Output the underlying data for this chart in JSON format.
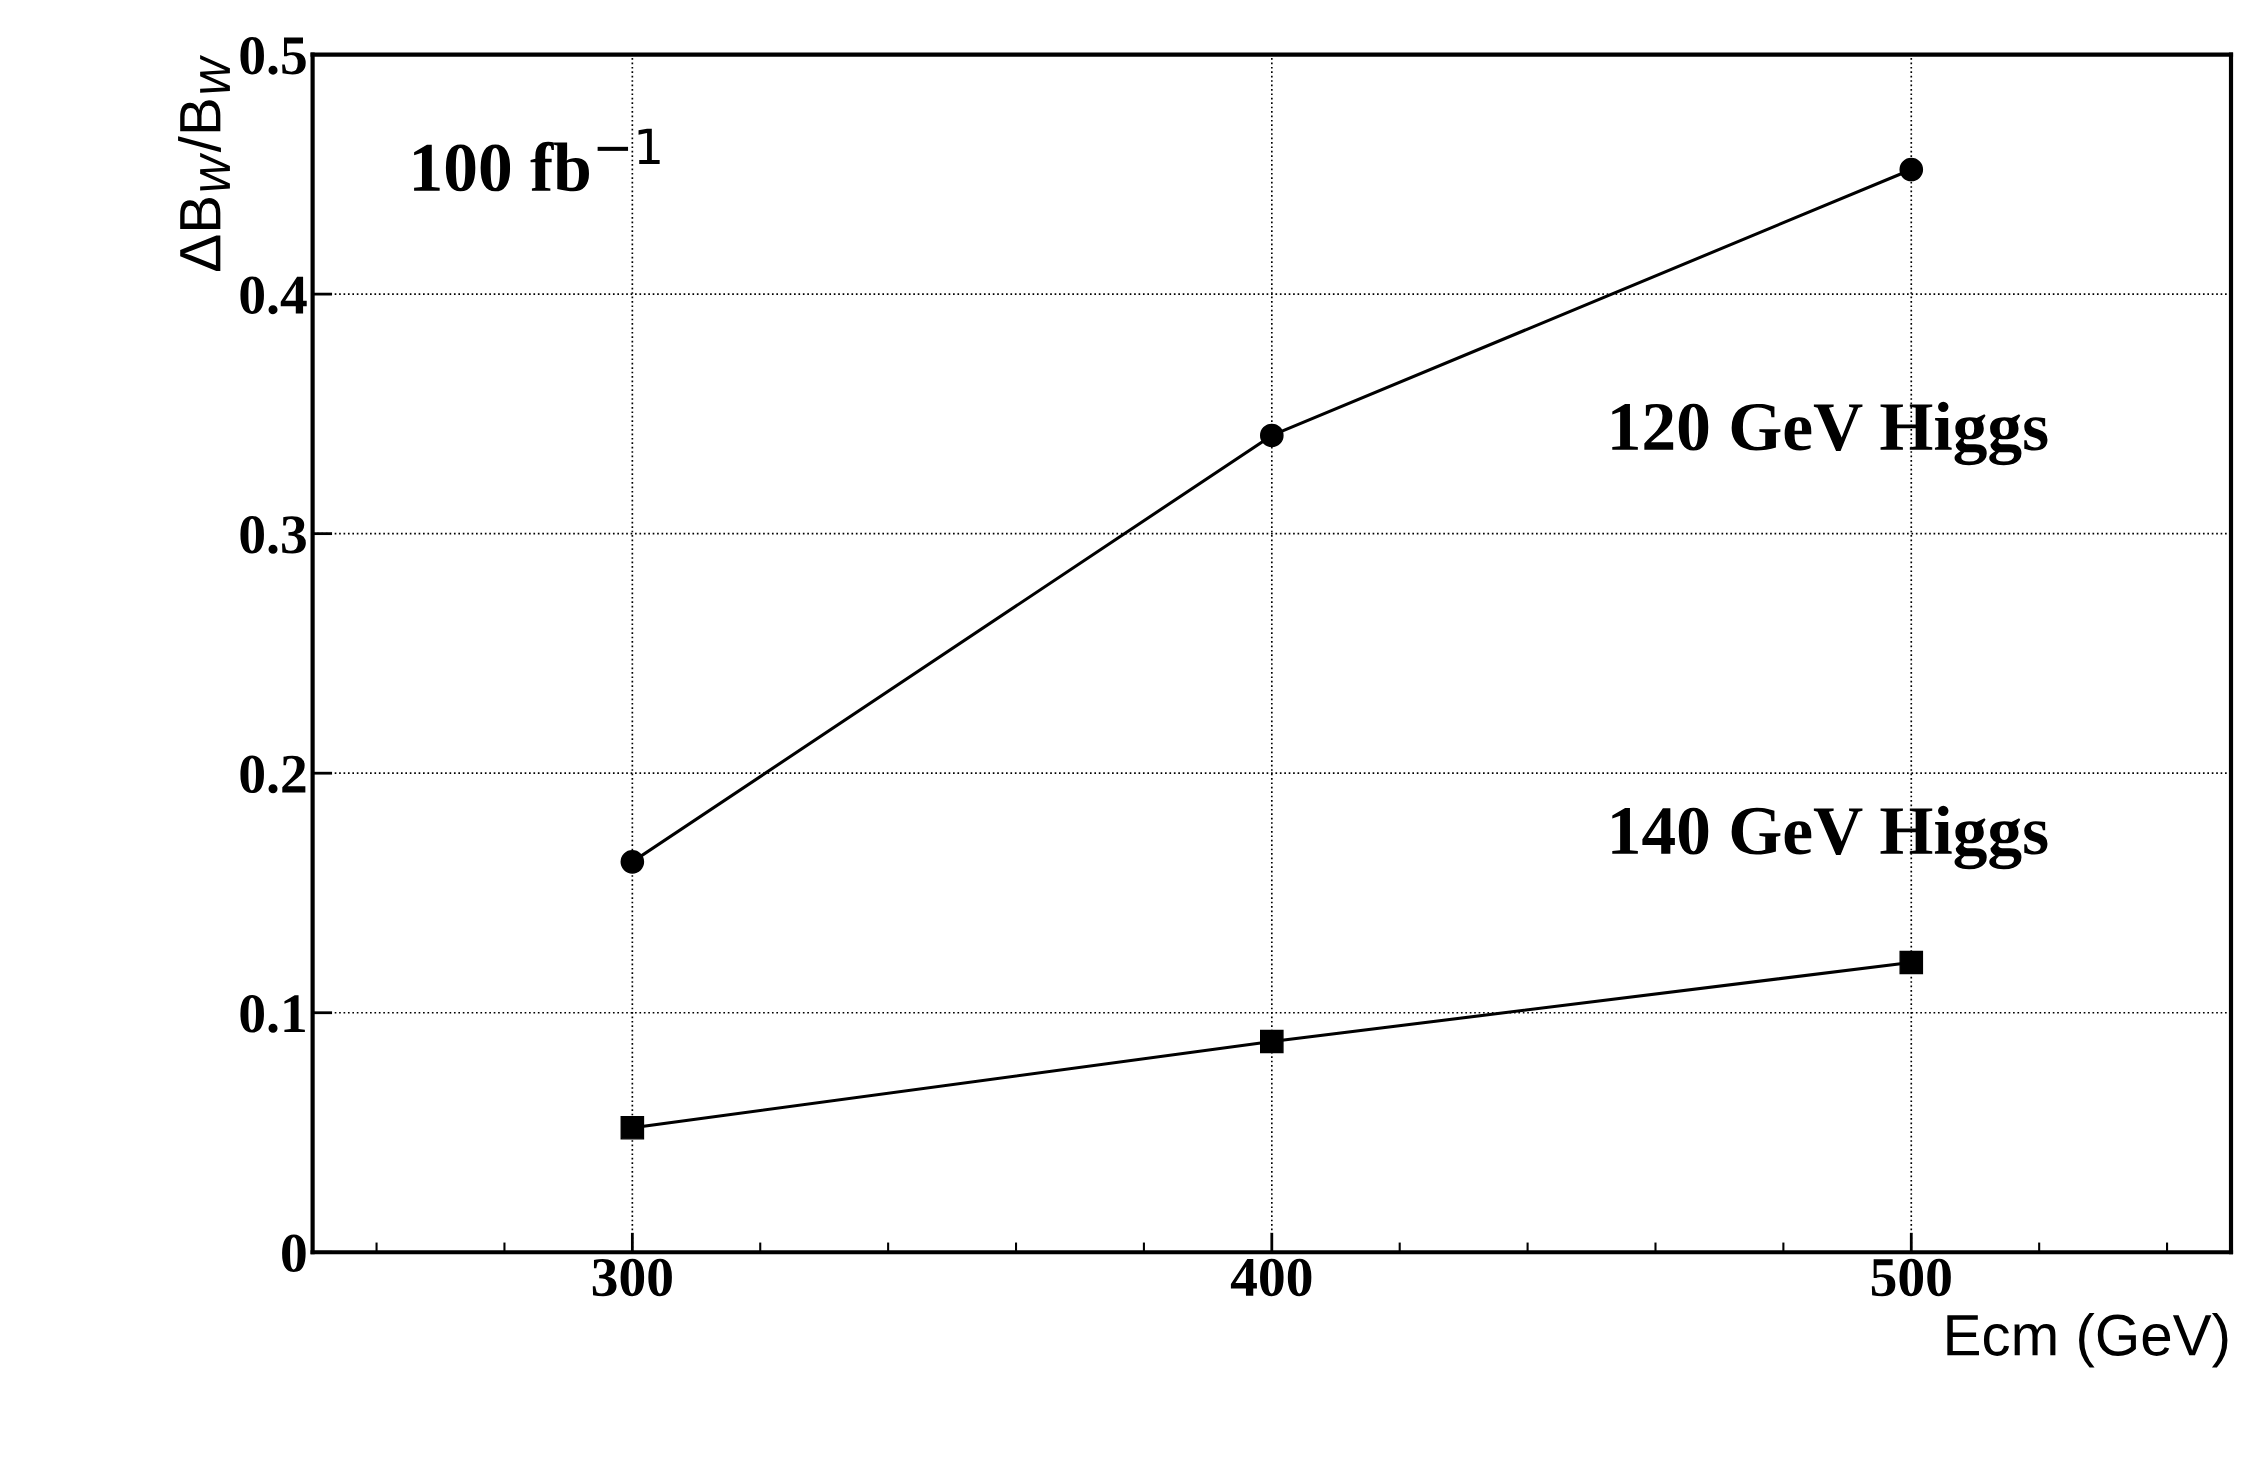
{
  "chart_data": {
    "type": "line",
    "xlabel": "Ecm (GeV)",
    "ylabel": "ΔB$_{W}$/B$_{W}$",
    "x": [
      300,
      400,
      500
    ],
    "series": [
      {
        "name": "120 GeV Higgs",
        "color": "#000000",
        "marker": "circle",
        "values": [
          0.163,
          0.341,
          0.452
        ]
      },
      {
        "name": "140 GeV Higgs",
        "color": "#000000",
        "marker": "square",
        "values": [
          0.052,
          0.088,
          0.121
        ]
      }
    ],
    "xlim": [
      250,
      550
    ],
    "xticks": [
      300,
      400,
      500
    ],
    "ylim": [
      0,
      0.5
    ],
    "yticks": [
      0,
      0.1,
      0.2,
      0.3,
      0.4,
      0.5
    ],
    "grid": true,
    "line_style": "solid",
    "annotations": [
      "100 fb$^{−1}$"
    ]
  }
}
